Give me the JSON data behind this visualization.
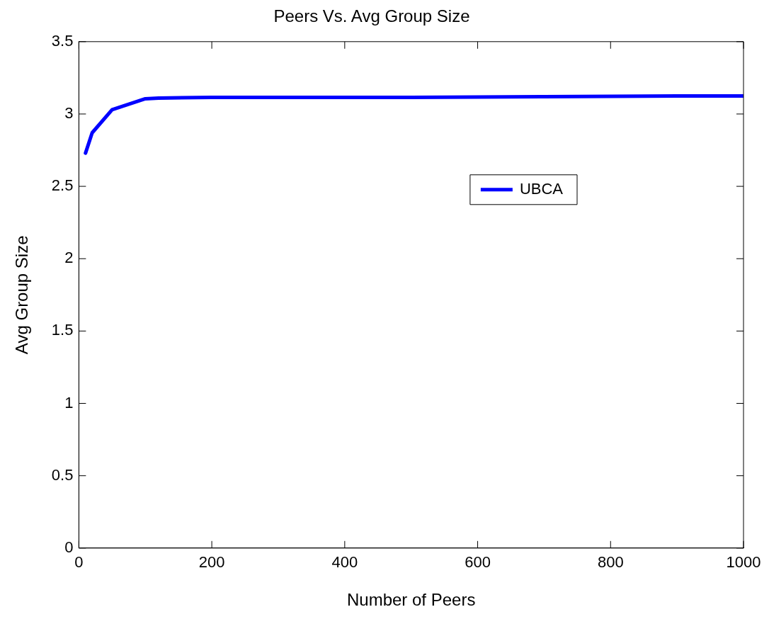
{
  "chart_data": {
    "type": "line",
    "title": "Peers Vs. Avg Group Size",
    "xlabel": "Number of Peers",
    "ylabel": "Avg Group Size",
    "x": [
      10,
      20,
      50,
      100,
      120,
      200,
      300,
      400,
      500,
      600,
      700,
      800,
      900,
      1000
    ],
    "series": [
      {
        "name": "UBCA",
        "color": "#0000ff",
        "values": [
          2.73,
          2.87,
          3.03,
          3.105,
          3.11,
          3.115,
          3.115,
          3.115,
          3.115,
          3.117,
          3.12,
          3.122,
          3.124,
          3.125
        ]
      }
    ],
    "xlim": [
      0,
      1000
    ],
    "xticks": [
      0,
      200,
      400,
      600,
      800,
      1000
    ],
    "ylim": [
      0,
      3.5
    ],
    "yticks": [
      0,
      0.5,
      1,
      1.5,
      2,
      2.5,
      3,
      3.5
    ],
    "grid": false,
    "legend": "top right",
    "marker": "none",
    "line_style": "solid"
  }
}
